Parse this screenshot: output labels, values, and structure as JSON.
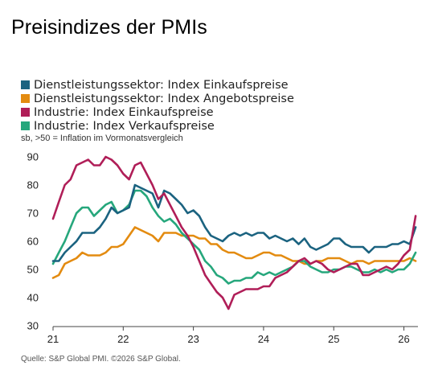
{
  "page": {
    "title": "Preisindizes der PMIs",
    "source": "Quelle: S&P Global PMI. ©2026 S&P Global."
  },
  "chart_data": {
    "type": "line",
    "title": "Preisindizes der PMIs",
    "subtitle": "sb, >50 = Inflation im Vormonatsvergleich",
    "xlabel": "",
    "ylabel": "",
    "xlim": [
      2021.0,
      2026.2
    ],
    "ylim": [
      30,
      90
    ],
    "x_ticks": [
      2021,
      2022,
      2023,
      2024,
      2025,
      2026
    ],
    "x_tick_labels": [
      "21",
      "22",
      "23",
      "24",
      "25",
      "26"
    ],
    "y_ticks": [
      30,
      40,
      50,
      60,
      70,
      80,
      90
    ],
    "y_tick_labels": [
      "30",
      "40",
      "50",
      "60",
      "70",
      "80",
      "90"
    ],
    "grid": false,
    "legend_position": "top-left",
    "x": [
      2021.0,
      2021.083,
      2021.167,
      2021.25,
      2021.333,
      2021.417,
      2021.5,
      2021.583,
      2021.667,
      2021.75,
      2021.833,
      2021.917,
      2022.0,
      2022.083,
      2022.167,
      2022.25,
      2022.333,
      2022.417,
      2022.5,
      2022.583,
      2022.667,
      2022.75,
      2022.833,
      2022.917,
      2023.0,
      2023.083,
      2023.167,
      2023.25,
      2023.333,
      2023.417,
      2023.5,
      2023.583,
      2023.667,
      2023.75,
      2023.833,
      2023.917,
      2024.0,
      2024.083,
      2024.167,
      2024.25,
      2024.333,
      2024.417,
      2024.5,
      2024.583,
      2024.667,
      2024.75,
      2024.833,
      2024.917,
      2025.0,
      2025.083,
      2025.167,
      2025.25,
      2025.333,
      2025.417,
      2025.5,
      2025.583,
      2025.667,
      2025.75,
      2025.833,
      2025.917,
      2026.0,
      2026.083,
      2026.167
    ],
    "series": [
      {
        "name": "Dienstleistungssektor: Index Einkaufspreise",
        "color": "#1b6380",
        "values": [
          53,
          53,
          56,
          58,
          60,
          63,
          63,
          63,
          65,
          68,
          72,
          70,
          71,
          72,
          80,
          79,
          78,
          77,
          72,
          78,
          77,
          75,
          73,
          70,
          71,
          69,
          65,
          62,
          61,
          60,
          62,
          63,
          62,
          63,
          62,
          63,
          63,
          61,
          62,
          61,
          60,
          61,
          59,
          61,
          58,
          57,
          58,
          59,
          61,
          61,
          59,
          58,
          58,
          58,
          56,
          58,
          58,
          58,
          59,
          59,
          60,
          59,
          65
        ]
      },
      {
        "name": "Dienstleistungssektor: Index Angebotspreise",
        "color": "#e38b10",
        "values": [
          47,
          48,
          52,
          53,
          54,
          56,
          55,
          55,
          55,
          56,
          58,
          58,
          59,
          62,
          65,
          64,
          63,
          62,
          60,
          63,
          63,
          63,
          62,
          62,
          62,
          61,
          61,
          59,
          59,
          57,
          56,
          56,
          55,
          54,
          54,
          55,
          56,
          56,
          55,
          55,
          54,
          53,
          53,
          52,
          52,
          53,
          53,
          54,
          54,
          54,
          53,
          52,
          53,
          53,
          52,
          53,
          53,
          53,
          53,
          53,
          53,
          54,
          53
        ]
      },
      {
        "name": "Industrie: Index Einkaufspreise",
        "color": "#b01e58",
        "values": [
          68,
          74,
          80,
          82,
          87,
          88,
          89,
          87,
          87,
          90,
          89,
          87,
          84,
          82,
          87,
          88,
          84,
          80,
          75,
          77,
          73,
          69,
          65,
          62,
          58,
          53,
          48,
          45,
          42,
          40,
          36,
          41,
          42,
          43,
          43,
          43,
          44,
          44,
          47,
          48,
          49,
          51,
          53,
          54,
          52,
          53,
          52,
          50,
          49,
          50,
          51,
          52,
          52,
          48,
          48,
          49,
          50,
          51,
          50,
          52,
          55,
          57,
          69
        ]
      },
      {
        "name": "Industrie: Index Verkaufspreise",
        "color": "#26a77c",
        "values": [
          52,
          56,
          60,
          65,
          70,
          72,
          72,
          69,
          71,
          73,
          74,
          70,
          71,
          73,
          78,
          78,
          76,
          72,
          69,
          67,
          68,
          66,
          63,
          61,
          59,
          57,
          53,
          51,
          48,
          47,
          45,
          46,
          46,
          47,
          47,
          49,
          48,
          49,
          48,
          49,
          50,
          51,
          53,
          53,
          51,
          50,
          49,
          49,
          50,
          50,
          51,
          51,
          50,
          49,
          49,
          50,
          49,
          50,
          49,
          50,
          50,
          52,
          56
        ]
      }
    ]
  }
}
